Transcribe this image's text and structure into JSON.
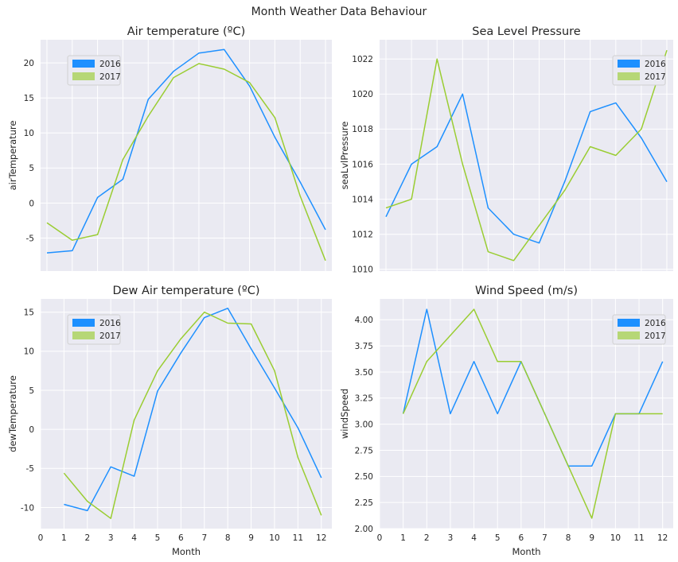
{
  "suptitle": "Month Weather Data Behaviour",
  "colors": {
    "2016": "#1E90FF",
    "2017": "#9ACD32",
    "plot_bg": "#EAEAF2",
    "grid": "#ffffff"
  },
  "chart_data": [
    {
      "type": "line",
      "title": "Air temperature (ºC)",
      "xlabel": "",
      "ylabel": "airTemperature",
      "x": [
        1,
        2,
        3,
        4,
        5,
        6,
        7,
        8,
        9,
        10,
        11,
        12
      ],
      "xlim": [
        0.75,
        12.25
      ],
      "ylim": [
        -9.7,
        23.3
      ],
      "yticks": [
        -5,
        0,
        5,
        10,
        15,
        20
      ],
      "legend": "upper-left",
      "series": [
        {
          "name": "2016",
          "color": "#1E90FF",
          "values": [
            -7.1,
            -6.8,
            0.8,
            3.4,
            14.8,
            18.8,
            21.4,
            21.9,
            16.7,
            9.4,
            3.0,
            -3.8
          ]
        },
        {
          "name": "2017",
          "color": "#9ACD32",
          "values": [
            -2.8,
            -5.3,
            -4.5,
            6.2,
            12.4,
            17.9,
            19.9,
            19.1,
            17.2,
            12.2,
            1.0,
            -8.2
          ]
        }
      ]
    },
    {
      "type": "line",
      "title": "Sea Level Pressure",
      "xlabel": "",
      "ylabel": "seaLvlPressure",
      "x": [
        1,
        2,
        3,
        4,
        5,
        6,
        7,
        8,
        9,
        10,
        11,
        12
      ],
      "xlim": [
        0.75,
        12.25
      ],
      "ylim": [
        1009.9,
        1023.1
      ],
      "yticks": [
        1010,
        1012,
        1014,
        1016,
        1018,
        1020,
        1022
      ],
      "legend": "upper-right",
      "series": [
        {
          "name": "2016",
          "color": "#1E90FF",
          "values": [
            1013.0,
            1016.0,
            1017.0,
            1020.0,
            1013.5,
            1012.0,
            1011.5,
            1015.0,
            1019.0,
            1019.5,
            1017.5,
            1015.0
          ]
        },
        {
          "name": "2017",
          "color": "#9ACD32",
          "values": [
            1013.5,
            1014.0,
            1022.0,
            1016.0,
            1011.0,
            1010.5,
            1012.5,
            1014.5,
            1017.0,
            1016.5,
            1018.0,
            1022.5
          ]
        }
      ]
    },
    {
      "type": "line",
      "title": "Dew Air temperature (ºC)",
      "xlabel": "Month",
      "ylabel": "dewTemperature",
      "x": [
        1,
        2,
        3,
        4,
        5,
        6,
        7,
        8,
        9,
        10,
        11,
        12
      ],
      "xlim": [
        0,
        12.45
      ],
      "xticks": [
        0,
        1,
        2,
        3,
        4,
        5,
        6,
        7,
        8,
        9,
        10,
        11,
        12
      ],
      "ylim": [
        -12.7,
        16.7
      ],
      "yticks": [
        -10,
        -5,
        0,
        5,
        10,
        15
      ],
      "legend": "upper-left",
      "series": [
        {
          "name": "2016",
          "color": "#1E90FF",
          "values": [
            -9.6,
            -10.4,
            -4.8,
            -6.0,
            4.9,
            9.8,
            14.3,
            15.5,
            10.3,
            5.3,
            0.2,
            -6.2
          ]
        },
        {
          "name": "2017",
          "color": "#9ACD32",
          "values": [
            -5.6,
            -9.2,
            -11.4,
            1.2,
            7.5,
            11.6,
            15.0,
            13.6,
            13.5,
            7.5,
            -3.6,
            -11.0
          ]
        }
      ]
    },
    {
      "type": "line",
      "title": "Wind Speed (m/s)",
      "xlabel": "Month",
      "ylabel": "windSpeed",
      "x": [
        1,
        2,
        3,
        4,
        5,
        6,
        7,
        8,
        9,
        10,
        11,
        12
      ],
      "xlim": [
        0,
        12.45
      ],
      "xticks": [
        0,
        1,
        2,
        3,
        4,
        5,
        6,
        7,
        8,
        9,
        10,
        11,
        12
      ],
      "ylim": [
        2.0,
        4.2
      ],
      "yticks": [
        2.0,
        2.25,
        2.5,
        2.75,
        3.0,
        3.25,
        3.5,
        3.75,
        4.0
      ],
      "ytick_labels": [
        "2.00",
        "2.25",
        "2.50",
        "2.75",
        "3.00",
        "3.25",
        "3.50",
        "3.75",
        "4.00"
      ],
      "legend": "upper-right",
      "series": [
        {
          "name": "2016",
          "color": "#1E90FF",
          "values": [
            3.1,
            4.1,
            3.1,
            3.6,
            3.1,
            3.6,
            3.1,
            2.6,
            2.6,
            3.1,
            3.1,
            3.6
          ]
        },
        {
          "name": "2017",
          "color": "#9ACD32",
          "values": [
            3.1,
            3.6,
            3.85,
            4.1,
            3.6,
            3.6,
            3.1,
            2.6,
            2.1,
            3.1,
            3.1,
            3.1
          ]
        }
      ]
    }
  ]
}
